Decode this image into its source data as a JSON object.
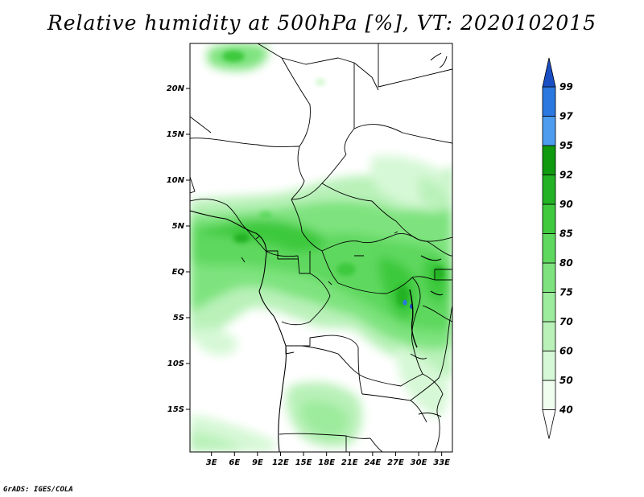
{
  "title": "Relative humidity at 500hPa [%], VT: 2020102015",
  "credit": "GrADS: IGES/COLA",
  "map": {
    "lat_labels": [
      {
        "label": "20N",
        "lat": 20
      },
      {
        "label": "15N",
        "lat": 15
      },
      {
        "label": "10N",
        "lat": 10
      },
      {
        "label": "5N",
        "lat": 5
      },
      {
        "label": "EQ",
        "lat": 0
      },
      {
        "label": "5S",
        "lat": -5
      },
      {
        "label": "10S",
        "lat": -10
      },
      {
        "label": "15S",
        "lat": -15
      }
    ],
    "lon_labels": [
      {
        "label": "3E",
        "lon": 3
      },
      {
        "label": "6E",
        "lon": 6
      },
      {
        "label": "9E",
        "lon": 9
      },
      {
        "label": "12E",
        "lon": 12
      },
      {
        "label": "15E",
        "lon": 15
      },
      {
        "label": "18E",
        "lon": 18
      },
      {
        "label": "21E",
        "lon": 21
      },
      {
        "label": "24E",
        "lon": 24
      },
      {
        "label": "27E",
        "lon": 27
      },
      {
        "label": "30E",
        "lon": 30
      },
      {
        "label": "33E",
        "lon": 33
      }
    ]
  },
  "colorbar": {
    "levels": [
      {
        "label": "40",
        "color": "#effeef"
      },
      {
        "label": "50",
        "color": "#d6f8d6"
      },
      {
        "label": "60",
        "color": "#b9f1b9"
      },
      {
        "label": "70",
        "color": "#9deb9d"
      },
      {
        "label": "75",
        "color": "#7ee37e"
      },
      {
        "label": "80",
        "color": "#5fd85f"
      },
      {
        "label": "85",
        "color": "#3ec93e"
      },
      {
        "label": "90",
        "color": "#23b223"
      },
      {
        "label": "92",
        "color": "#0f9a0f"
      },
      {
        "label": "95",
        "color": "#4d9cf0"
      },
      {
        "label": "97",
        "color": "#2a78e0"
      },
      {
        "label": "99",
        "color": "#1a4fc4"
      }
    ],
    "top_color": "#1a4fc4",
    "bottom_color": "#ffffff"
  },
  "features": [
    "coastline",
    "country-borders",
    "lake-victoria",
    "lake-tanganyika"
  ]
}
